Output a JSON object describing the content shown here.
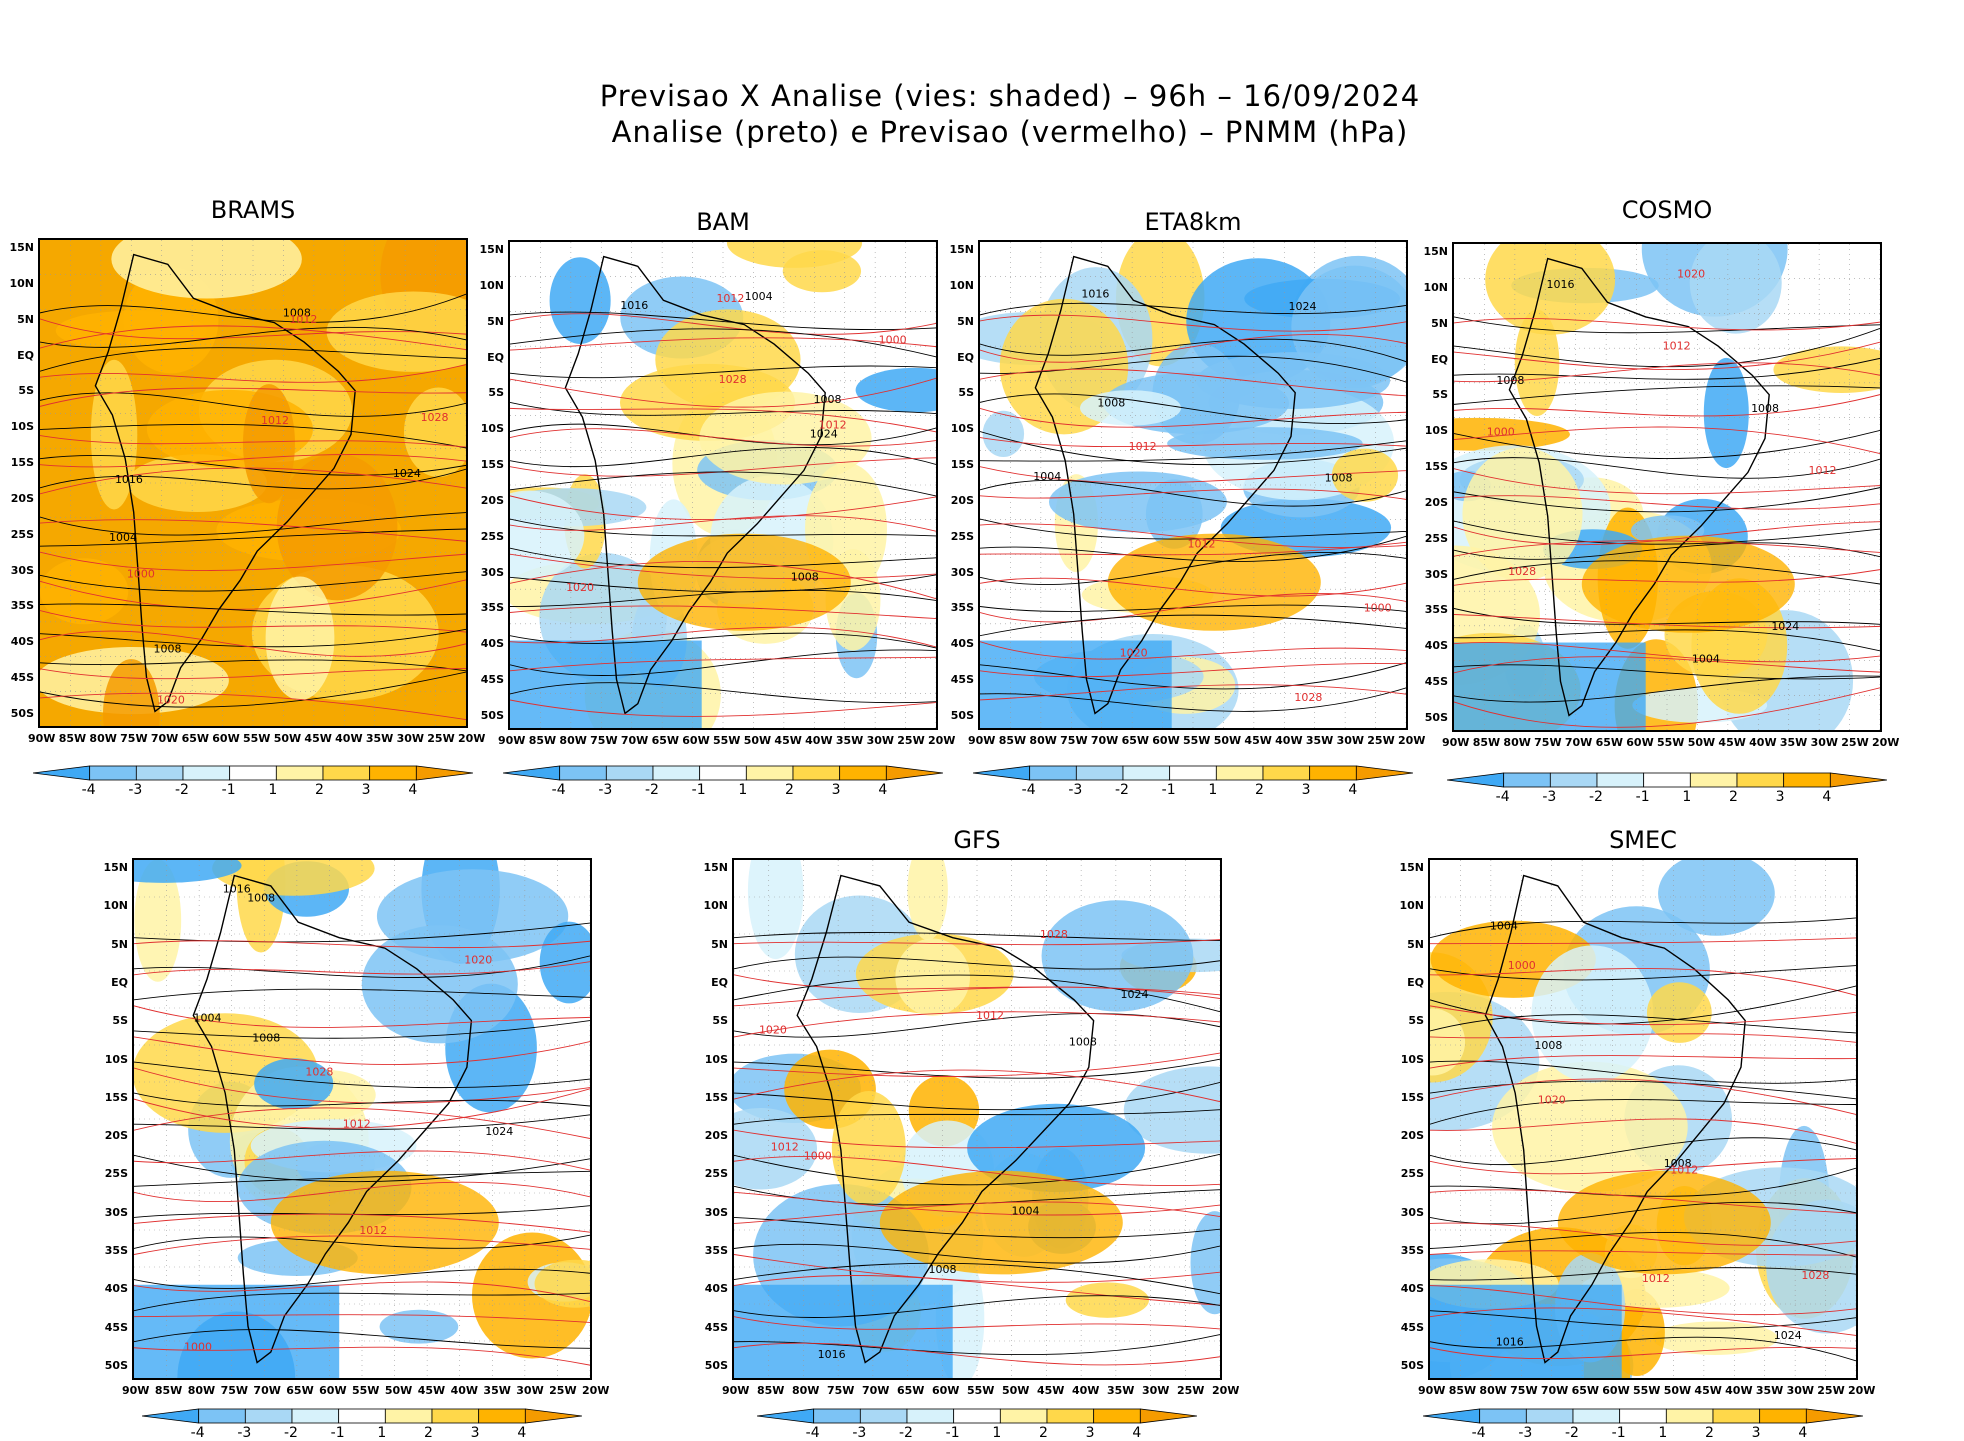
{
  "title": {
    "line1": "Previsao X Analise (vies: shaded) – 96h – 16/09/2024",
    "line2": "Analise (preto) e Previsao (vermelho) – PNMM (hPa)"
  },
  "lat_labels": [
    "15N",
    "10N",
    "5N",
    "EQ",
    "5S",
    "10S",
    "15S",
    "20S",
    "25S",
    "30S",
    "35S",
    "40S",
    "45S",
    "50S"
  ],
  "lon_labels": [
    "90W",
    "85W",
    "80W",
    "75W",
    "70W",
    "65W",
    "60W",
    "55W",
    "50W",
    "45W",
    "40W",
    "35W",
    "30W",
    "25W",
    "20W"
  ],
  "colorbar": {
    "labels": [
      "-4",
      "-3",
      "-2",
      "-1",
      "1",
      "2",
      "3",
      "4"
    ],
    "colors": [
      "#3fa9f5",
      "#7cc3f5",
      "#a9d8f5",
      "#d7f2fb",
      "#ffffff",
      "#fff3a6",
      "#ffd84a",
      "#ffb300",
      "#f59b00"
    ]
  },
  "panels": [
    {
      "name": "BRAMS",
      "bias": "warm"
    },
    {
      "name": "BAM",
      "bias": "mixed"
    },
    {
      "name": "ETA8km",
      "bias": "mixed"
    },
    {
      "name": "COSMO",
      "bias": "mixed"
    },
    {
      "name": "",
      "bias": "mixed"
    },
    {
      "name": "GFS",
      "bias": "mixed"
    },
    {
      "name": "SMEC",
      "bias": "mixed"
    }
  ],
  "isobar_labels": [
    "1008",
    "1012",
    "1016",
    "1020",
    "1024",
    "1028",
    "1004",
    "1000"
  ]
}
